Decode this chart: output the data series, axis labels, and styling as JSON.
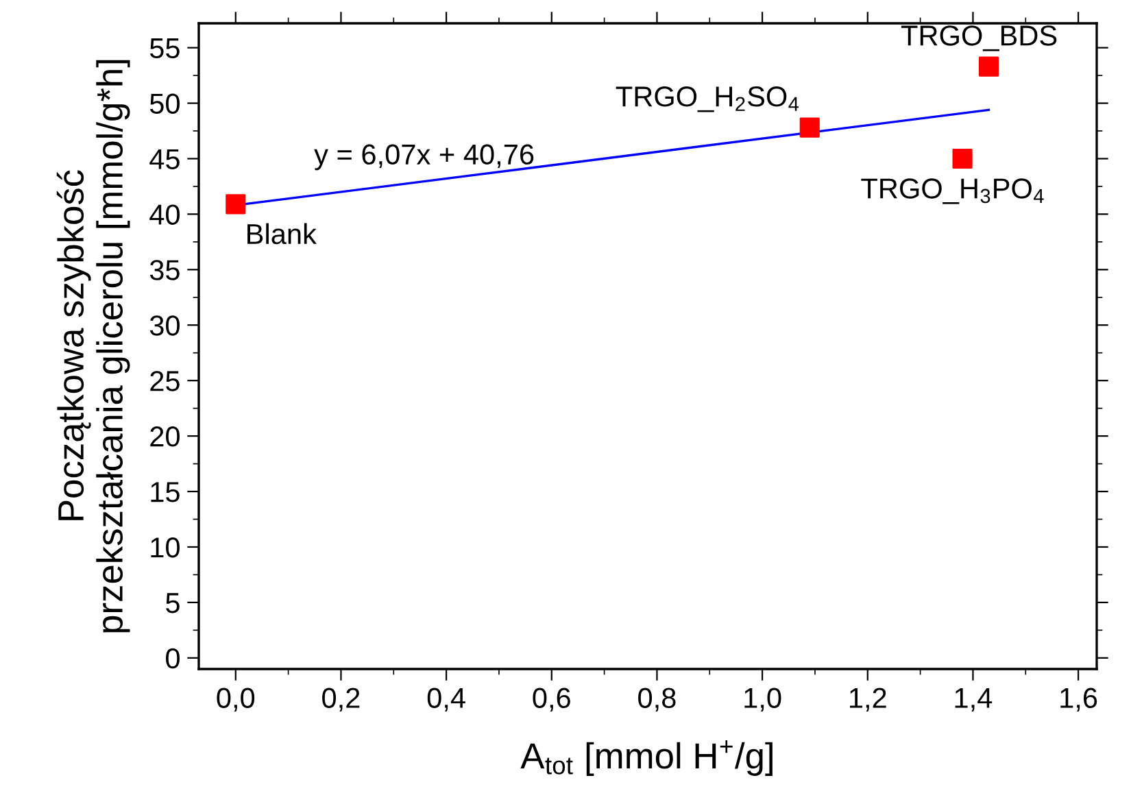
{
  "chart_data": {
    "type": "scatter",
    "xlabel": "A$_{tot}$ [mmol H$^{+}$/g]",
    "ylabel": "Początkowa szybkość\nprzekształcania glicerolu [mmol/g*h]",
    "series": [
      {
        "color": "#ff0000",
        "marker": "square",
        "x": [
          0,
          1.09,
          1.38,
          1.43
        ],
        "values": [
          40.9,
          47.8,
          45.0,
          53.3
        ]
      },
      {
        "type": "line",
        "color": "#0000ff",
        "marker": "none",
        "line_style": "solid",
        "x": [
          0,
          1.43
        ],
        "values": [
          40.8,
          49.4
        ]
      }
    ],
    "annotations": [
      {
        "text": "Blank",
        "x": 0,
        "y": 40.9
      },
      {
        "text": "TRGO_H$_{2}$SO$_{4}$",
        "x": 1.09,
        "y": 47.8
      },
      {
        "text": "TRGO_H$_{3}$PO$_{4}$",
        "x": 1.38,
        "y": 45.0
      },
      {
        "text": "TRGO_BDS",
        "x": 1.43,
        "y": 53.3
      },
      {
        "text": "y = 6,07x + 40,76",
        "x": 0.38,
        "y": 43.1
      }
    ],
    "xlim": [
      -0.07,
      1.635
    ],
    "ylim": [
      -1,
      57.2
    ],
    "xticks": [
      {
        "value": 0,
        "label": "0,0"
      },
      {
        "value": 0.2,
        "label": "0,2"
      },
      {
        "value": 0.4,
        "label": "0,4"
      },
      {
        "value": 0.6,
        "label": "0,6"
      },
      {
        "value": 0.8,
        "label": "0,8"
      },
      {
        "value": 1.0,
        "label": "1,0"
      },
      {
        "value": 1.2,
        "label": "1,2"
      },
      {
        "value": 1.4,
        "label": "1,4"
      },
      {
        "value": 1.6,
        "label": "1,6"
      }
    ],
    "yticks": [
      0,
      5,
      10,
      15,
      20,
      25,
      30,
      35,
      40,
      45,
      50,
      55
    ],
    "grid": false,
    "legend": false
  }
}
